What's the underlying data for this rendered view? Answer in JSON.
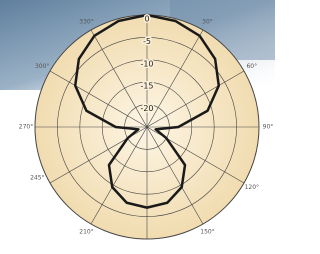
{
  "chart_data": {
    "type": "polar",
    "theta": [
      0,
      15,
      30,
      45,
      60,
      75,
      90,
      105,
      120,
      135,
      150,
      165,
      180,
      195,
      210,
      225,
      240,
      255,
      270,
      285,
      300,
      315,
      330,
      345
    ],
    "values": [
      0,
      -0.5,
      -1.5,
      -3.5,
      -6.5,
      -11,
      -18,
      -23,
      -20,
      -13,
      -9.5,
      -7.5,
      -7,
      -7.5,
      -9.5,
      -13,
      -20,
      -23,
      -18,
      -11,
      -6.5,
      -3.5,
      -1.5,
      -0.5
    ],
    "color": "#1a1a1a",
    "rlim": [
      -25,
      0
    ],
    "rticks": [
      0,
      -5,
      -10,
      -15,
      -20
    ],
    "thetaticks": [
      30,
      60,
      90,
      120,
      150,
      210,
      245,
      270,
      300,
      330
    ],
    "thetagrid_step": 30,
    "direction": "clockwise",
    "zero": "top"
  }
}
